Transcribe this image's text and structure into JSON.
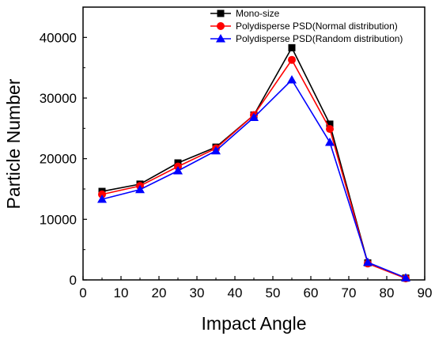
{
  "chart_data": {
    "type": "line",
    "title": "",
    "xlabel": "Impact Angle",
    "ylabel": "Particle Number",
    "xlim": [
      0,
      90
    ],
    "ylim": [
      0,
      45000
    ],
    "xticks": [
      0,
      10,
      20,
      30,
      40,
      50,
      60,
      70,
      80,
      90
    ],
    "yticks": [
      0,
      10000,
      20000,
      30000,
      40000
    ],
    "grid": false,
    "legend_position": "top-right",
    "x": [
      5,
      15,
      25,
      35,
      45,
      55,
      65,
      75,
      85
    ],
    "series": [
      {
        "name": "Mono-size",
        "color": "#000000",
        "marker": "square",
        "values": [
          14600,
          15800,
          19300,
          21900,
          27200,
          38300,
          25700,
          2800,
          300
        ]
      },
      {
        "name": "Polydisperse PSD(Normal distribution)",
        "color": "#ff0000",
        "marker": "circle",
        "values": [
          14100,
          15500,
          18700,
          21700,
          27200,
          36300,
          24900,
          2700,
          250
        ]
      },
      {
        "name": "Polydisperse PSD(Random distribution)",
        "color": "#0000ff",
        "marker": "triangle",
        "values": [
          13300,
          14900,
          18000,
          21300,
          26800,
          33000,
          22700,
          2900,
          350
        ]
      }
    ]
  }
}
